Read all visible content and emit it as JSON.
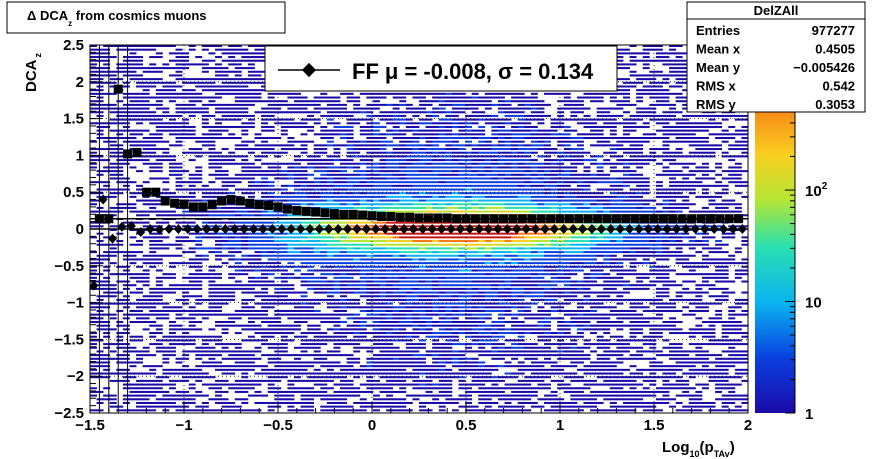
{
  "title": "Δ DCA",
  "title_sub": "z",
  "title_rest": " from cosmics muons",
  "chart_data": {
    "type": "heatmap",
    "xlabel_main": "Log",
    "xlabel_sub1": "10",
    "xlabel_mid": "(p",
    "xlabel_sub2": "TAv",
    "xlabel_end": ")",
    "ylabel_main": "DCA",
    "ylabel_sub": "z",
    "xlim": [
      -1.5,
      2
    ],
    "ylim": [
      -2.5,
      2.5
    ],
    "x_ticks": [
      {
        "v": -1.5,
        "label": "−1.5"
      },
      {
        "v": -1,
        "label": "−1"
      },
      {
        "v": -0.5,
        "label": "−0.5"
      },
      {
        "v": 0,
        "label": "0"
      },
      {
        "v": 0.5,
        "label": "0.5"
      },
      {
        "v": 1,
        "label": "1"
      },
      {
        "v": 1.5,
        "label": "1.5"
      },
      {
        "v": 2,
        "label": "2"
      }
    ],
    "y_ticks": [
      {
        "v": 2.5,
        "label": "2.5"
      },
      {
        "v": 2,
        "label": "2"
      },
      {
        "v": 1.5,
        "label": "1.5"
      },
      {
        "v": 1,
        "label": "1"
      },
      {
        "v": 0.5,
        "label": "0.5"
      },
      {
        "v": 0,
        "label": "0"
      },
      {
        "v": -0.5,
        "label": "−0.5"
      },
      {
        "v": -1,
        "label": "−1"
      },
      {
        "v": -1.5,
        "label": "−1.5"
      },
      {
        "v": -2,
        "label": "−2"
      },
      {
        "v": -2.5,
        "label": "−2.5"
      }
    ],
    "z_scale": "log",
    "z_range": [
      1,
      2000
    ],
    "z_ticks": [
      {
        "v": 1,
        "label": "1"
      },
      {
        "v": 10,
        "label": "10"
      },
      {
        "v": 100,
        "label": "10",
        "sup": "2"
      }
    ],
    "grid": true,
    "colormap": [
      "#1a0aa8",
      "#0a40e0",
      "#0ab4f0",
      "#28e0b0",
      "#b4e632",
      "#f8d020",
      "#f87a14",
      "#c81414"
    ],
    "fit_legend": {
      "marker_label": "FF",
      "text": "μ = -0.008, σ =   0.134"
    },
    "series": [
      {
        "marker": "square",
        "x": [
          -1.45,
          -1.4,
          -1.35,
          -1.3,
          -1.25,
          -1.2,
          -1.15,
          -1.1,
          -1.05,
          -1.0,
          -0.95,
          -0.9,
          -0.85,
          -0.8,
          -0.75,
          -0.7,
          -0.65,
          -0.6,
          -0.55,
          -0.5,
          -0.45,
          -0.4,
          -0.35,
          -0.3,
          -0.25,
          -0.2,
          -0.15,
          -0.1,
          -0.05,
          0.0,
          0.05,
          0.1,
          0.15,
          0.2,
          0.25,
          0.3,
          0.35,
          0.4,
          0.45,
          0.5,
          0.55,
          0.6,
          0.65,
          0.7,
          0.75,
          0.8,
          0.85,
          0.9,
          0.95,
          1.0,
          1.05,
          1.1,
          1.15,
          1.2,
          1.25,
          1.3,
          1.35,
          1.4,
          1.45,
          1.5,
          1.55,
          1.6,
          1.65,
          1.7,
          1.75,
          1.8,
          1.85,
          1.9,
          1.95
        ],
        "y": [
          0.14,
          0.14,
          1.9,
          1.02,
          1.04,
          0.5,
          0.5,
          0.38,
          0.35,
          0.34,
          0.3,
          0.3,
          0.33,
          0.38,
          0.4,
          0.38,
          0.35,
          0.33,
          0.32,
          0.3,
          0.27,
          0.25,
          0.24,
          0.23,
          0.22,
          0.21,
          0.2,
          0.2,
          0.19,
          0.18,
          0.17,
          0.17,
          0.16,
          0.16,
          0.15,
          0.15,
          0.15,
          0.15,
          0.14,
          0.14,
          0.14,
          0.14,
          0.14,
          0.14,
          0.14,
          0.14,
          0.14,
          0.14,
          0.14,
          0.14,
          0.14,
          0.14,
          0.14,
          0.14,
          0.14,
          0.14,
          0.14,
          0.14,
          0.14,
          0.14,
          0.14,
          0.14,
          0.14,
          0.14,
          0.14,
          0.14,
          0.14,
          0.14,
          0.14
        ]
      },
      {
        "marker": "diamond",
        "x": [
          -1.48,
          -1.43,
          -1.38,
          -1.33,
          -1.28,
          -1.23,
          -1.18,
          -1.13,
          -1.08,
          -1.03,
          -0.98,
          -0.93,
          -0.88,
          -0.83,
          -0.78,
          -0.73,
          -0.68,
          -0.63,
          -0.58,
          -0.53,
          -0.48,
          -0.43,
          -0.38,
          -0.33,
          -0.28,
          -0.23,
          -0.18,
          -0.13,
          -0.08,
          -0.03,
          0.02,
          0.07,
          0.12,
          0.17,
          0.22,
          0.27,
          0.32,
          0.37,
          0.42,
          0.47,
          0.52,
          0.57,
          0.62,
          0.67,
          0.72,
          0.77,
          0.82,
          0.87,
          0.92,
          0.97,
          1.02,
          1.07,
          1.12,
          1.17,
          1.22,
          1.27,
          1.32,
          1.37,
          1.42,
          1.47,
          1.52,
          1.57,
          1.62,
          1.67,
          1.72,
          1.77,
          1.82,
          1.87,
          1.92,
          1.97
        ],
        "y": [
          -0.77,
          0.4,
          -0.13,
          0.03,
          0.04,
          -0.04,
          0.0,
          -0.01,
          0.0,
          0.0,
          0.0,
          0.0,
          0.0,
          0.0,
          0.0,
          0.0,
          0.0,
          0.0,
          0.0,
          0.0,
          0.0,
          0.0,
          0.0,
          0.0,
          0.0,
          0.0,
          0.0,
          0.0,
          0.0,
          0.0,
          0.0,
          0.0,
          0.0,
          0.0,
          0.0,
          0.0,
          0.0,
          0.0,
          0.0,
          0.0,
          0.0,
          0.0,
          0.0,
          0.0,
          0.0,
          0.0,
          0.0,
          0.0,
          0.0,
          0.0,
          0.0,
          0.0,
          0.0,
          0.0,
          0.0,
          0.0,
          0.0,
          0.0,
          0.0,
          0.0,
          0.0,
          0.0,
          0.0,
          0.0,
          0.0,
          0.0,
          0.0,
          0.0,
          0.0,
          0.0
        ]
      }
    ],
    "stats_box": {
      "title": "DelZAll",
      "rows": [
        {
          "label": "Entries",
          "value": "977277"
        },
        {
          "label": "Mean x",
          "value": "0.4505"
        },
        {
          "label": "Mean y",
          "value": "−0.005426"
        },
        {
          "label": "RMS x",
          "value": "0.542"
        },
        {
          "label": "RMS y",
          "value": "0.3053"
        }
      ]
    }
  }
}
